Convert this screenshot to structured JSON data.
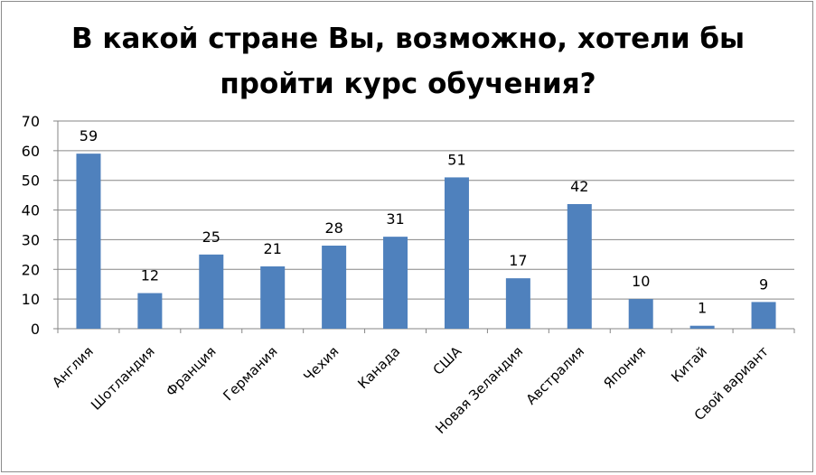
{
  "chart_data": {
    "type": "bar",
    "title_line1": "В какой стране Вы, возможно, хотели бы",
    "title_line2": "пройти курс обучения?",
    "categories": [
      "Англия",
      "Шотландия",
      "Франция",
      "Германия",
      "Чехия",
      "Канада",
      "США",
      "Новая Зеландия",
      "Австралия",
      "Япония",
      "Китай",
      "Свой вариант"
    ],
    "values": [
      59,
      12,
      25,
      21,
      28,
      31,
      51,
      17,
      42,
      10,
      1,
      9
    ],
    "ylim": [
      0,
      70
    ],
    "yticks": [
      0,
      10,
      20,
      30,
      40,
      50,
      60,
      70
    ],
    "grid": true,
    "data_labels": true,
    "bar_color": "#4f81bd"
  }
}
